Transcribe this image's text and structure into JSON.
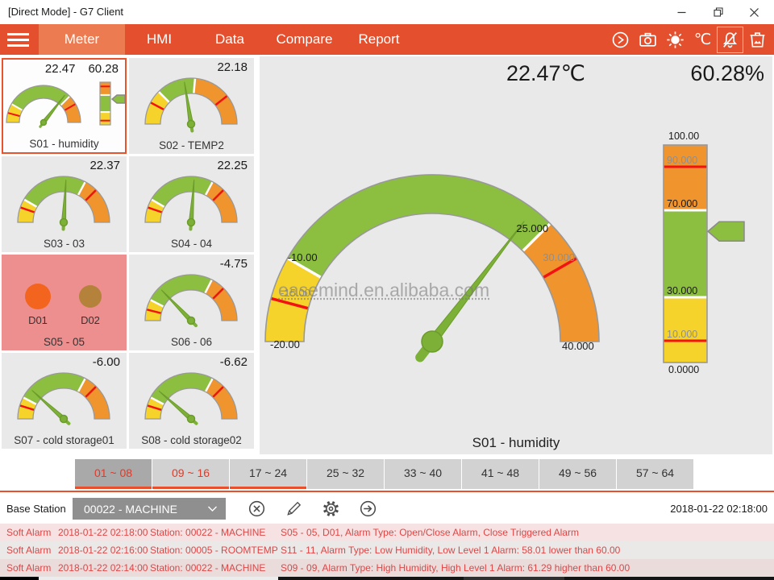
{
  "window": {
    "title": "[Direct Mode] - G7 Client"
  },
  "menu": {
    "items": [
      {
        "label": "Meter",
        "active": true
      },
      {
        "label": "HMI",
        "active": false
      },
      {
        "label": "Data",
        "active": false
      },
      {
        "label": "Compare",
        "active": false
      },
      {
        "label": "Report",
        "active": false
      }
    ],
    "icons": [
      {
        "name": "sync-icon",
        "active": false
      },
      {
        "name": "camera-icon",
        "active": false
      },
      {
        "name": "brightness-icon",
        "active": false
      },
      {
        "name": "celsius-icon",
        "active": false
      },
      {
        "name": "alarm-mute-icon",
        "active": true
      },
      {
        "name": "clear-image-icon",
        "active": false
      }
    ],
    "celsius_label": "℃"
  },
  "colors": {
    "accent": "#E8502D",
    "menubar": "#E4502D",
    "menu_active": "#EC7B52",
    "yellow": "#F6D32B",
    "green": "#8CBE3F",
    "orange": "#F0942D",
    "red": "#F21212",
    "white": "#FFFFFF",
    "outline": "#999999",
    "needle": "#7DB036",
    "needleEdge": "#6B9B2C",
    "pointer_outline": "#8A8A8A",
    "tile_alarm_bg": "#EE8F8F",
    "alarm_text": "#E04545",
    "dropdown_bg": "#8F8F8F"
  },
  "tiles": [
    {
      "id": "s01",
      "label": "S01 - humidity",
      "values": [
        "22.47",
        "60.28"
      ],
      "kind": "gauge-bar",
      "selected": true,
      "gauge": {
        "segments": [
          [
            180,
            150,
            "yellow"
          ],
          [
            150,
            45,
            "green"
          ],
          [
            45,
            0,
            "orange"
          ]
        ],
        "ticks": [
          [
            165,
            "red"
          ],
          [
            150,
            "white"
          ],
          [
            45,
            "white"
          ],
          [
            30,
            "red"
          ]
        ],
        "needle_deg": 52
      },
      "bar": {
        "min": 0,
        "max": 100,
        "value": 60.28,
        "segments": [
          [
            0,
            30,
            "yellow"
          ],
          [
            30,
            70,
            "green"
          ],
          [
            70,
            100,
            "orange"
          ]
        ],
        "ticks": [
          [
            10,
            "red"
          ],
          [
            30,
            "white"
          ],
          [
            70,
            "white"
          ],
          [
            90,
            "red"
          ]
        ]
      }
    },
    {
      "id": "s02",
      "label": "S02 - TEMP2",
      "values": [
        "22.18"
      ],
      "kind": "gauge",
      "gauge": {
        "segments": [
          [
            180,
            135,
            "yellow"
          ],
          [
            135,
            85,
            "green"
          ],
          [
            85,
            0,
            "orange"
          ]
        ],
        "ticks": [
          [
            152,
            "red"
          ],
          [
            135,
            "white"
          ],
          [
            85,
            "white"
          ],
          [
            38,
            "red"
          ]
        ],
        "needle_deg": 99
      }
    },
    {
      "id": "s03",
      "label": "S03 - 03",
      "values": [
        "22.37"
      ],
      "kind": "gauge",
      "gauge": {
        "segments": [
          [
            180,
            150,
            "yellow"
          ],
          [
            150,
            62,
            "green"
          ],
          [
            62,
            0,
            "orange"
          ]
        ],
        "ticks": [
          [
            161,
            "red"
          ],
          [
            150,
            "white"
          ],
          [
            62,
            "white"
          ],
          [
            45,
            "red"
          ]
        ],
        "needle_deg": 87
      }
    },
    {
      "id": "s04",
      "label": "S04 - 04",
      "values": [
        "22.25"
      ],
      "kind": "gauge",
      "gauge": {
        "segments": [
          [
            180,
            150,
            "yellow"
          ],
          [
            150,
            62,
            "green"
          ],
          [
            62,
            0,
            "orange"
          ]
        ],
        "ticks": [
          [
            161,
            "red"
          ],
          [
            150,
            "white"
          ],
          [
            62,
            "white"
          ],
          [
            45,
            "red"
          ]
        ],
        "needle_deg": 86
      }
    },
    {
      "id": "s05",
      "label": "S05 - 05",
      "kind": "dio",
      "alarm": true,
      "dios": [
        {
          "label": "D01",
          "color": "#F3641E"
        },
        {
          "label": "D02",
          "color": "#B5823C"
        }
      ]
    },
    {
      "id": "s06",
      "label": "S06 - 06",
      "values": [
        "-4.75"
      ],
      "kind": "gauge",
      "gauge": {
        "segments": [
          [
            180,
            153,
            "yellow"
          ],
          [
            153,
            63,
            "green"
          ],
          [
            63,
            0,
            "orange"
          ]
        ],
        "ticks": [
          [
            166,
            "red"
          ],
          [
            153,
            "white"
          ],
          [
            63,
            "white"
          ],
          [
            45,
            "red"
          ]
        ],
        "needle_deg": 134
      }
    },
    {
      "id": "s07",
      "label": "S07 - cold storage01",
      "values": [
        "-6.00"
      ],
      "kind": "gauge",
      "gauge": {
        "segments": [
          [
            180,
            152,
            "yellow"
          ],
          [
            152,
            62,
            "green"
          ],
          [
            62,
            0,
            "orange"
          ]
        ],
        "ticks": [
          [
            163,
            "red"
          ],
          [
            152,
            "white"
          ],
          [
            62,
            "white"
          ],
          [
            45,
            "red"
          ]
        ],
        "needle_deg": 138
      }
    },
    {
      "id": "s08",
      "label": "S08 - cold storage02",
      "values": [
        "-6.62"
      ],
      "kind": "gauge",
      "gauge": {
        "segments": [
          [
            180,
            152,
            "yellow"
          ],
          [
            152,
            62,
            "green"
          ],
          [
            62,
            0,
            "orange"
          ]
        ],
        "ticks": [
          [
            163,
            "red"
          ],
          [
            152,
            "white"
          ],
          [
            62,
            "white"
          ],
          [
            45,
            "red"
          ]
        ],
        "needle_deg": 139
      }
    }
  ],
  "main": {
    "temp": "22.47℃",
    "humidity": "60.28%",
    "caption": "S01 - humidity",
    "watermark": "easemind.en.alibaba.com",
    "gauge": {
      "min": -20,
      "max": 40,
      "value": 22.47,
      "segments": [
        [
          -20,
          -10,
          "yellow"
        ],
        [
          -10,
          25,
          "green"
        ],
        [
          25,
          40,
          "orange"
        ]
      ],
      "ticks": [
        [
          -15,
          "red"
        ],
        [
          -10,
          "white"
        ],
        [
          25,
          "white"
        ],
        [
          30,
          "red"
        ]
      ],
      "labels": [
        {
          "v": -20,
          "text": "-20.00",
          "tone": "dark"
        },
        {
          "v": -15,
          "text": "-15.00",
          "tone": "muted"
        },
        {
          "v": -10,
          "text": "-10.00",
          "tone": "dark"
        },
        {
          "v": 25,
          "text": "25.000",
          "tone": "dark"
        },
        {
          "v": 30,
          "text": "30.000",
          "tone": "muted"
        },
        {
          "v": 40,
          "text": "40.000",
          "tone": "dark"
        }
      ]
    },
    "bar": {
      "min": 0,
      "max": 100,
      "value": 60.28,
      "segments": [
        [
          0,
          30,
          "yellow"
        ],
        [
          30,
          70,
          "green"
        ],
        [
          70,
          100,
          "orange"
        ]
      ],
      "ticks": [
        [
          10,
          "red"
        ],
        [
          30,
          "white"
        ],
        [
          70,
          "white"
        ],
        [
          90,
          "red"
        ]
      ],
      "labels": [
        {
          "v": 100,
          "text": "100.00",
          "tone": "dark",
          "place": "above"
        },
        {
          "v": 90,
          "text": "90.000",
          "tone": "muted"
        },
        {
          "v": 70,
          "text": "70.000",
          "tone": "dark"
        },
        {
          "v": 30,
          "text": "30.000",
          "tone": "dark"
        },
        {
          "v": 10,
          "text": "10.000",
          "tone": "muted"
        },
        {
          "v": 0,
          "text": "0.0000",
          "tone": "dark",
          "place": "below"
        }
      ]
    }
  },
  "tabs": [
    {
      "label": "01 ~ 08",
      "active": true,
      "alarm": true,
      "underline": true
    },
    {
      "label": "09 ~ 16",
      "active": false,
      "alarm": true,
      "underline": true
    },
    {
      "label": "17 ~ 24",
      "active": false,
      "alarm": false,
      "underline": true
    },
    {
      "label": "25 ~ 32",
      "active": false,
      "alarm": false,
      "underline": false
    },
    {
      "label": "33 ~ 40",
      "active": false,
      "alarm": false,
      "underline": false
    },
    {
      "label": "41 ~ 48",
      "active": false,
      "alarm": false,
      "underline": false
    },
    {
      "label": "49 ~ 56",
      "active": false,
      "alarm": false,
      "underline": false
    },
    {
      "label": "57 ~ 64",
      "active": false,
      "alarm": false,
      "underline": false
    }
  ],
  "station_bar": {
    "label": "Base Station",
    "selected": "00022 - MACHINE",
    "icons": [
      "cancel-icon",
      "edit-icon",
      "settings-icon",
      "apply-icon"
    ],
    "timestamp": "2018-01-22 02:18:00"
  },
  "alarms": [
    {
      "type": "Soft Alarm",
      "time": "2018-01-22 02:18:00",
      "station": "Station: 00022 - MACHINE",
      "message": "S05 - 05, D01, Alarm Type: Open/Close Alarm, Close Triggered Alarm"
    },
    {
      "type": "Soft Alarm",
      "time": "2018-01-22 02:16:00",
      "station": "Station: 00005 - ROOMTEMP",
      "message": "S11 - 11, Alarm Type: Low Humidity, Low Level 1 Alarm: 58.01 lower than 60.00"
    },
    {
      "type": "Soft Alarm",
      "time": "2018-01-22 02:14:00",
      "station": "Station: 00022 - MACHINE",
      "message": "S09 - 09, Alarm Type: High Humidity, High Level 1 Alarm: 61.29 higher than 60.00"
    }
  ]
}
